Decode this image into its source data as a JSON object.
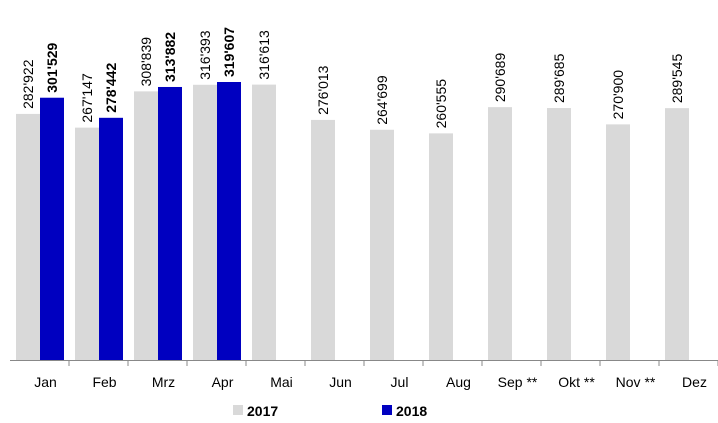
{
  "chart_data": {
    "type": "bar",
    "categories": [
      "Jan",
      "Feb",
      "Mrz",
      "Apr",
      "Mai",
      "Jun",
      "Jul",
      "Aug",
      "Sep **",
      "Okt **",
      "Nov **",
      "Dez"
    ],
    "series": [
      {
        "name": "2017",
        "color": "#d9d9d9",
        "values": [
          282922,
          267147,
          308839,
          316393,
          316613,
          276013,
          264699,
          260555,
          290689,
          289685,
          270900,
          289545
        ],
        "value_labels": [
          "282'922",
          "267'147",
          "308'839",
          "316'393",
          "316'613",
          "276'013",
          "264'699",
          "260'555",
          "290'689",
          "289'685",
          "270'900",
          "289'545"
        ]
      },
      {
        "name": "2018",
        "color": "#0000c0",
        "values": [
          301529,
          278442,
          313882,
          319607,
          null,
          null,
          null,
          null,
          null,
          null,
          null,
          null
        ],
        "value_labels": [
          "301'529",
          "278'442",
          "313'882",
          "319'607",
          null,
          null,
          null,
          null,
          null,
          null,
          null,
          null
        ]
      }
    ]
  }
}
